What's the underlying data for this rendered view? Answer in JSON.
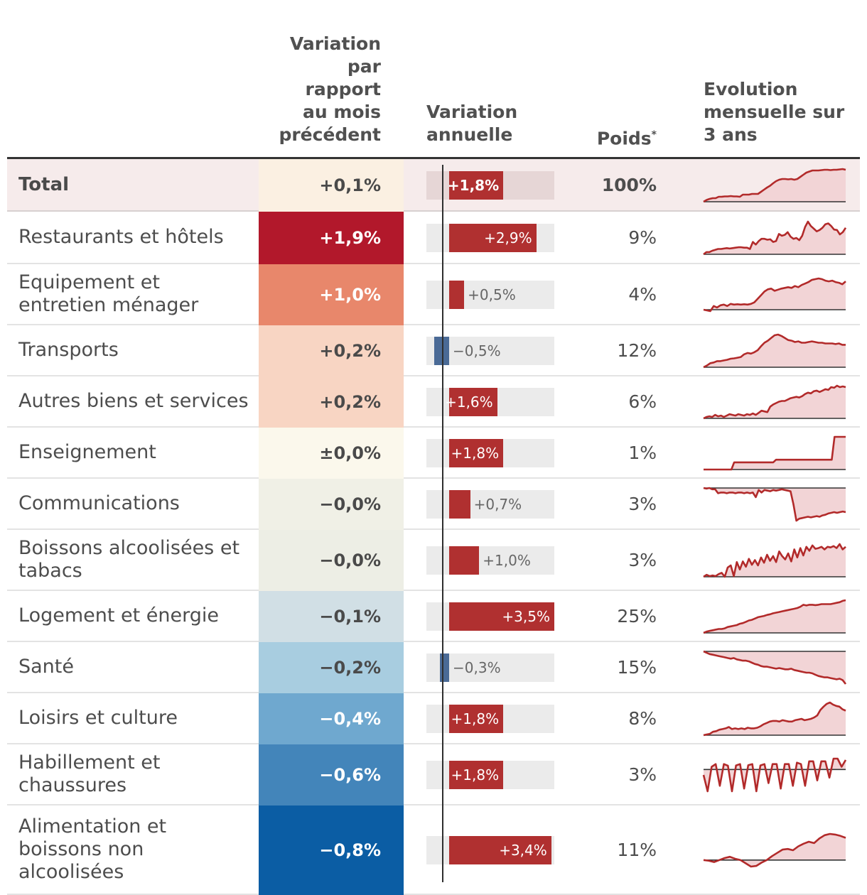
{
  "headers": {
    "mom": [
      "Variation",
      "par",
      "rapport",
      "au mois",
      "précédent"
    ],
    "yoy": [
      "Variation",
      "annuelle"
    ],
    "poids": "Poids",
    "poids_note": "*",
    "evolution": [
      "Evolution",
      "mensuelle sur",
      "3 ans"
    ]
  },
  "colors": {
    "bar_positive": "#b03030",
    "bar_negative": "#4a6a96",
    "spark_line": "#b22a2a",
    "spark_fill": "#f2d4d6"
  },
  "chart_data": {
    "type": "table",
    "title": "",
    "yoy_range": [
      -1.0,
      3.5
    ],
    "rows": [
      {
        "label": "Total",
        "mom": "+0,1%",
        "mom_value": 0.1,
        "mom_color": "#fbf0e2",
        "mom_text_color": "#4a4a4a",
        "yoy": "+1,8%",
        "yoy_value": 1.8,
        "poids": "100%",
        "total": true,
        "spark": [
          0.0,
          0.05,
          0.08,
          0.1,
          0.1,
          0.14,
          0.14,
          0.15,
          0.15,
          0.16,
          0.15,
          0.15,
          0.14,
          0.2,
          0.2,
          0.2,
          0.22,
          0.22,
          0.22,
          0.28,
          0.34,
          0.4,
          0.45,
          0.52,
          0.58,
          0.62,
          0.64,
          0.64,
          0.63,
          0.64,
          0.62,
          0.64,
          0.7,
          0.76,
          0.82,
          0.85,
          0.88,
          0.88,
          0.88,
          0.89,
          0.9,
          0.9,
          0.89,
          0.9,
          0.9,
          0.91,
          0.92,
          0.9
        ],
        "spark_base": 0.0
      },
      {
        "label": "Restaurants et hôtels",
        "mom": "+1,9%",
        "mom_value": 1.9,
        "mom_color": "#b2182b",
        "mom_text_color": "#ffffff",
        "yoy": "+2,9%",
        "yoy_value": 2.9,
        "poids": "9%",
        "spark": [
          0.0,
          0.05,
          0.05,
          0.08,
          0.1,
          0.12,
          0.12,
          0.13,
          0.14,
          0.13,
          0.14,
          0.15,
          0.16,
          0.16,
          0.15,
          0.15,
          0.12,
          0.28,
          0.22,
          0.3,
          0.35,
          0.35,
          0.33,
          0.34,
          0.28,
          0.3,
          0.46,
          0.42,
          0.44,
          0.5,
          0.4,
          0.35,
          0.37,
          0.32,
          0.42,
          0.62,
          0.74,
          0.64,
          0.58,
          0.52,
          0.55,
          0.6,
          0.68,
          0.7,
          0.64,
          0.56,
          0.55,
          0.45,
          0.5,
          0.6
        ],
        "spark_base": 0.0
      },
      {
        "label": "Equipement et entretien ménager",
        "mom": "+1,0%",
        "mom_value": 1.0,
        "mom_color": "#e8876b",
        "mom_text_color": "#ffffff",
        "yoy": "+0,5%",
        "yoy_value": 0.5,
        "poids": "4%",
        "spark": [
          0.0,
          -0.02,
          -0.04,
          0.1,
          0.06,
          0.12,
          0.14,
          0.1,
          0.16,
          0.14,
          0.15,
          0.14,
          0.15,
          0.14,
          0.16,
          0.2,
          0.3,
          0.4,
          0.5,
          0.56,
          0.58,
          0.52,
          0.55,
          0.58,
          0.6,
          0.62,
          0.6,
          0.65,
          0.62,
          0.68,
          0.72,
          0.76,
          0.82,
          0.84,
          0.86,
          0.84,
          0.8,
          0.78,
          0.8,
          0.76,
          0.74,
          0.7,
          0.78
        ],
        "spark_base": 0.0
      },
      {
        "label": "Transports",
        "mom": "+0,2%",
        "mom_value": 0.2,
        "mom_color": "#f8d5c3",
        "mom_text_color": "#4a4a4a",
        "yoy": "−0,5%",
        "yoy_value": -0.5,
        "poids": "12%",
        "spark": [
          0.0,
          0.05,
          0.12,
          0.14,
          0.18,
          0.18,
          0.2,
          0.22,
          0.25,
          0.26,
          0.28,
          0.3,
          0.38,
          0.42,
          0.4,
          0.44,
          0.5,
          0.62,
          0.72,
          0.78,
          0.86,
          0.94,
          0.96,
          0.92,
          0.86,
          0.8,
          0.78,
          0.74,
          0.76,
          0.72,
          0.72,
          0.74,
          0.76,
          0.74,
          0.72,
          0.72,
          0.7,
          0.7,
          0.7,
          0.68,
          0.7,
          0.66,
          0.66
        ],
        "spark_base": 0.0
      },
      {
        "label": "Autres biens et services",
        "mom": "+0,2%",
        "mom_value": 0.2,
        "mom_color": "#f8d5c3",
        "mom_text_color": "#4a4a4a",
        "yoy": "+1,6%",
        "yoy_value": 1.6,
        "poids": "6%",
        "spark": [
          0.0,
          0.04,
          0.06,
          0.04,
          0.1,
          0.06,
          0.08,
          0.04,
          0.08,
          0.12,
          0.1,
          0.08,
          0.12,
          0.1,
          0.08,
          0.12,
          0.1,
          0.14,
          0.1,
          0.16,
          0.22,
          0.2,
          0.18,
          0.34,
          0.4,
          0.44,
          0.48,
          0.5,
          0.5,
          0.54,
          0.58,
          0.6,
          0.62,
          0.6,
          0.64,
          0.7,
          0.74,
          0.72,
          0.78,
          0.8,
          0.76,
          0.8,
          0.84,
          0.82,
          0.9,
          0.88,
          0.94,
          0.9,
          0.92,
          0.9
        ],
        "spark_base": 0.0
      },
      {
        "label": "Enseignement",
        "mom": "±0,0%",
        "mom_value": 0.0,
        "mom_color": "#fbf8ec",
        "mom_text_color": "#4a4a4a",
        "yoy": "+1,8%",
        "yoy_value": 1.8,
        "poids": "1%",
        "spark": [
          0.0,
          0.0,
          0.0,
          0.0,
          0.0,
          0.0,
          0.0,
          0.0,
          0.0,
          0.0,
          0.0,
          0.22,
          0.22,
          0.22,
          0.22,
          0.22,
          0.22,
          0.22,
          0.22,
          0.22,
          0.22,
          0.22,
          0.22,
          0.22,
          0.22,
          0.22,
          0.3,
          0.3,
          0.3,
          0.3,
          0.3,
          0.3,
          0.3,
          0.3,
          0.3,
          0.3,
          0.3,
          0.3,
          0.3,
          0.3,
          0.3,
          0.3,
          0.3,
          0.3,
          0.3,
          0.3,
          0.3,
          1.0,
          1.0,
          1.0,
          1.0,
          1.0
        ],
        "spark_base": 0.0
      },
      {
        "label": "Communications",
        "mom": "−0,0%",
        "mom_value": 0.0,
        "mom_color": "#f0f0e6",
        "mom_text_color": "#4a4a4a",
        "yoy": "+0,7%",
        "yoy_value": 0.7,
        "poids": "3%",
        "spark": [
          1.0,
          0.98,
          1.0,
          0.96,
          0.96,
          0.84,
          0.86,
          0.86,
          0.84,
          0.86,
          0.86,
          0.84,
          0.86,
          0.86,
          0.84,
          0.86,
          0.84,
          0.86,
          0.72,
          0.94,
          0.86,
          0.94,
          0.92,
          0.9,
          0.94,
          0.92,
          0.94,
          0.96,
          0.94,
          0.92,
          0.9,
          0.5,
          0.0,
          0.06,
          0.08,
          0.1,
          0.12,
          0.1,
          0.12,
          0.14,
          0.12,
          0.16,
          0.18,
          0.22,
          0.24,
          0.26,
          0.24,
          0.26,
          0.28,
          0.26
        ],
        "spark_base": 1.0
      },
      {
        "label": "Boissons alcoolisées et tabacs",
        "mom": "−0,0%",
        "mom_value": 0.0,
        "mom_color": "#edeee5",
        "mom_text_color": "#4a4a4a",
        "yoy": "+1,0%",
        "yoy_value": 1.0,
        "poids": "3%",
        "spark": [
          0.0,
          0.06,
          0.02,
          0.04,
          0.02,
          0.08,
          0.12,
          0.0,
          0.28,
          0.34,
          0.02,
          0.44,
          0.22,
          0.46,
          0.3,
          0.54,
          0.36,
          0.5,
          0.34,
          0.58,
          0.42,
          0.66,
          0.48,
          0.62,
          0.44,
          0.76,
          0.62,
          0.52,
          0.7,
          0.46,
          0.82,
          0.58,
          0.86,
          0.64,
          0.9,
          0.78,
          0.94,
          0.84,
          0.86,
          0.9,
          0.82,
          0.9,
          0.88,
          0.92,
          0.86,
          0.98,
          0.82,
          0.9
        ],
        "spark_base": 0.0
      },
      {
        "label": "Logement et énergie",
        "mom": "−0,1%",
        "mom_value": -0.1,
        "mom_color": "#d1dfe5",
        "mom_text_color": "#4a4a4a",
        "yoy": "+3,5%",
        "yoy_value": 3.5,
        "poids": "25%",
        "spark": [
          0.0,
          0.04,
          0.06,
          0.08,
          0.1,
          0.12,
          0.12,
          0.14,
          0.18,
          0.2,
          0.22,
          0.24,
          0.28,
          0.3,
          0.34,
          0.38,
          0.4,
          0.44,
          0.48,
          0.5,
          0.52,
          0.55,
          0.57,
          0.6,
          0.62,
          0.64,
          0.66,
          0.68,
          0.7,
          0.72,
          0.74,
          0.76,
          0.8,
          0.86,
          0.84,
          0.86,
          0.86,
          0.85,
          0.86,
          0.88,
          0.88,
          0.88,
          0.88,
          0.9,
          0.92,
          0.94,
          0.98,
          1.0
        ],
        "spark_base": 0.0
      },
      {
        "label": "Santé",
        "mom": "−0,2%",
        "mom_value": -0.2,
        "mom_color": "#a8cde0",
        "mom_text_color": "#4a4a4a",
        "yoy": "−0,3%",
        "yoy_value": -0.3,
        "poids": "15%",
        "spark": [
          1.0,
          0.96,
          0.92,
          0.9,
          0.88,
          0.86,
          0.84,
          0.82,
          0.8,
          0.78,
          0.8,
          0.76,
          0.74,
          0.72,
          0.72,
          0.7,
          0.66,
          0.62,
          0.6,
          0.56,
          0.54,
          0.54,
          0.52,
          0.5,
          0.48,
          0.5,
          0.48,
          0.46,
          0.46,
          0.48,
          0.44,
          0.42,
          0.4,
          0.38,
          0.36,
          0.36,
          0.34,
          0.3,
          0.26,
          0.24,
          0.22,
          0.22,
          0.2,
          0.18,
          0.16,
          0.18,
          0.14,
          0.02
        ],
        "spark_base": 1.0
      },
      {
        "label": "Loisirs et culture",
        "mom": "−0,4%",
        "mom_value": -0.4,
        "mom_color": "#6fa8cf",
        "mom_text_color": "#ffffff",
        "yoy": "+1,8%",
        "yoy_value": 1.8,
        "poids": "8%",
        "spark": [
          0.0,
          0.02,
          0.04,
          0.1,
          0.12,
          0.16,
          0.18,
          0.2,
          0.24,
          0.18,
          0.2,
          0.18,
          0.2,
          0.18,
          0.22,
          0.2,
          0.2,
          0.22,
          0.26,
          0.32,
          0.36,
          0.4,
          0.42,
          0.42,
          0.4,
          0.44,
          0.42,
          0.4,
          0.4,
          0.44,
          0.46,
          0.48,
          0.44,
          0.46,
          0.48,
          0.52,
          0.58,
          0.74,
          0.84,
          0.92,
          0.96,
          0.9,
          0.86,
          0.84,
          0.76,
          0.72
        ],
        "spark_base": 0.0
      },
      {
        "label": "Habillement et chaussures",
        "mom": "−0,6%",
        "mom_value": -0.6,
        "mom_color": "#4385ba",
        "mom_text_color": "#ffffff",
        "yoy": "+1,8%",
        "yoy_value": 1.8,
        "poids": "3%",
        "spark": [
          0.6,
          0.0,
          0.9,
          1.0,
          0.2,
          1.0,
          0.94,
          0.0,
          0.95,
          1.0,
          0.1,
          0.96,
          1.0,
          0.0,
          0.95,
          1.0,
          0.3,
          1.0,
          1.0,
          0.1,
          1.0,
          1.0,
          0.2,
          1.05,
          1.0,
          0.2,
          1.1,
          1.1,
          0.4,
          1.1,
          1.1,
          0.5,
          1.2,
          1.2,
          0.9,
          1.15
        ],
        "spark_base": 0.8
      },
      {
        "label": "Alimentation et boissons non alcoolisées",
        "mom": "−0,8%",
        "mom_value": -0.8,
        "mom_color": "#0b5da4",
        "mom_text_color": "#ffffff",
        "yoy": "+3,4%",
        "yoy_value": 3.4,
        "poids": "11%",
        "spark": [
          0.2,
          0.18,
          0.14,
          0.2,
          0.26,
          0.3,
          0.24,
          0.2,
          0.1,
          0.0,
          0.02,
          0.12,
          0.2,
          0.32,
          0.42,
          0.52,
          0.54,
          0.5,
          0.62,
          0.7,
          0.76,
          0.72,
          0.86,
          0.96,
          1.0,
          0.98,
          0.94,
          0.88
        ],
        "spark_base": 0.2
      }
    ]
  }
}
